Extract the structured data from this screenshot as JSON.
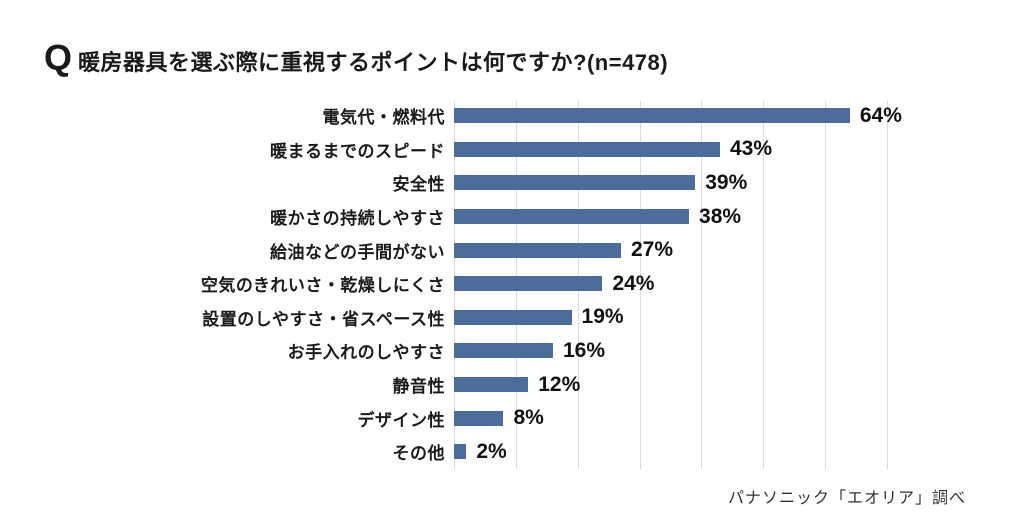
{
  "title": {
    "q_mark": "Q",
    "text": "暖房器具を選ぶ際に重視するポイントは何ですか?(n=478)"
  },
  "footer": {
    "source": "パナソニック「エオリア」調べ"
  },
  "chart_data": {
    "type": "bar",
    "orientation": "horizontal",
    "title": "暖房器具を選ぶ際に重視するポイントは何ですか?(n=478)",
    "sample_note": "n=478",
    "categories": [
      "電気代・燃料代",
      "暖まるまでのスピード",
      "安全性",
      "暖かさの持続しやすさ",
      "給油などの手間がない",
      "空気のきれいさ・乾燥しにくさ",
      "設置のしやすさ・省スペース性",
      "お手入れのしやすさ",
      "静音性",
      "デザイン性",
      "その他"
    ],
    "values": [
      64,
      43,
      39,
      38,
      27,
      24,
      19,
      16,
      12,
      8,
      2
    ],
    "value_suffix": "%",
    "xlim": [
      0,
      70
    ],
    "xticks": [
      0,
      10,
      20,
      30,
      40,
      50,
      60,
      70
    ],
    "grid": true,
    "legend": false,
    "bar_color": "#4c6d9c",
    "gridline_color": "#dcdcdc"
  }
}
